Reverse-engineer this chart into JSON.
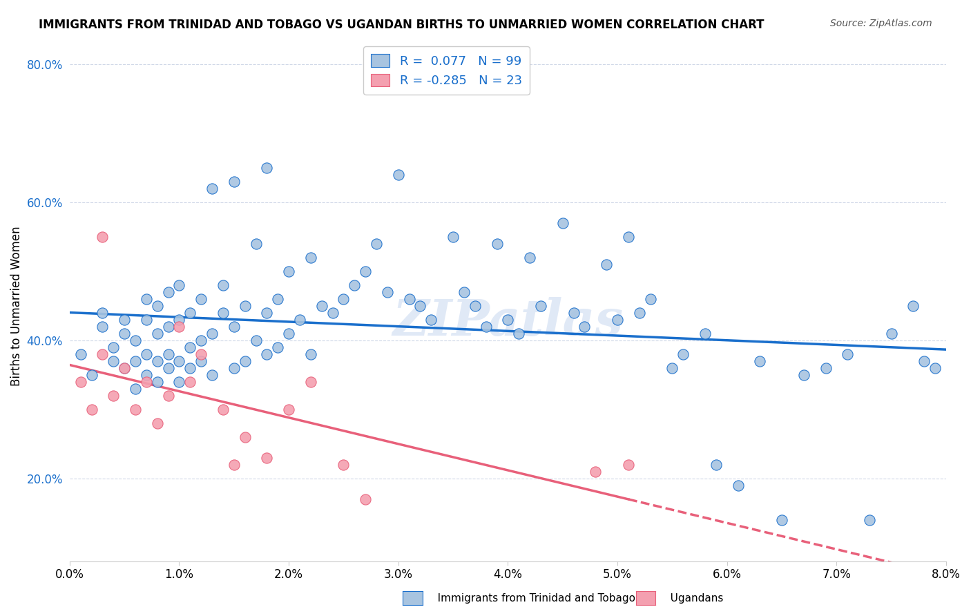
{
  "title": "IMMIGRANTS FROM TRINIDAD AND TOBAGO VS UGANDAN BIRTHS TO UNMARRIED WOMEN CORRELATION CHART",
  "source": "Source: ZipAtlas.com",
  "xlabel": "",
  "ylabel": "Births to Unmarried Women",
  "xlim": [
    0.0,
    0.08
  ],
  "ylim": [
    0.08,
    0.82
  ],
  "xticks": [
    0.0,
    0.01,
    0.02,
    0.03,
    0.04,
    0.05,
    0.06,
    0.07,
    0.08
  ],
  "xticklabels": [
    "0.0%",
    "1.0%",
    "2.0%",
    "3.0%",
    "4.0%",
    "5.0%",
    "6.0%",
    "7.0%",
    "8.0%"
  ],
  "yticks": [
    0.2,
    0.4,
    0.6,
    0.8
  ],
  "yticklabels": [
    "20.0%",
    "40.0%",
    "60.0%",
    "80.0%"
  ],
  "blue_r": "0.077",
  "blue_n": "99",
  "pink_r": "-0.285",
  "pink_n": "23",
  "blue_color": "#a8c4e0",
  "pink_color": "#f4a0b0",
  "blue_line_color": "#1a6fcc",
  "pink_line_color": "#e8607a",
  "watermark": "ZIPatlas",
  "blue_scatter_x": [
    0.001,
    0.002,
    0.003,
    0.003,
    0.004,
    0.004,
    0.005,
    0.005,
    0.005,
    0.006,
    0.006,
    0.006,
    0.007,
    0.007,
    0.007,
    0.007,
    0.008,
    0.008,
    0.008,
    0.008,
    0.009,
    0.009,
    0.009,
    0.009,
    0.01,
    0.01,
    0.01,
    0.01,
    0.011,
    0.011,
    0.011,
    0.012,
    0.012,
    0.012,
    0.013,
    0.013,
    0.013,
    0.014,
    0.014,
    0.015,
    0.015,
    0.015,
    0.016,
    0.016,
    0.017,
    0.017,
    0.018,
    0.018,
    0.018,
    0.019,
    0.019,
    0.02,
    0.02,
    0.021,
    0.022,
    0.022,
    0.023,
    0.024,
    0.025,
    0.026,
    0.027,
    0.028,
    0.029,
    0.03,
    0.031,
    0.032,
    0.033,
    0.035,
    0.036,
    0.037,
    0.038,
    0.039,
    0.04,
    0.041,
    0.042,
    0.043,
    0.045,
    0.046,
    0.047,
    0.049,
    0.05,
    0.051,
    0.052,
    0.053,
    0.055,
    0.056,
    0.058,
    0.059,
    0.061,
    0.063,
    0.065,
    0.067,
    0.069,
    0.071,
    0.073,
    0.075,
    0.077,
    0.078,
    0.079
  ],
  "blue_scatter_y": [
    0.38,
    0.35,
    0.42,
    0.44,
    0.37,
    0.39,
    0.36,
    0.41,
    0.43,
    0.33,
    0.37,
    0.4,
    0.35,
    0.38,
    0.43,
    0.46,
    0.34,
    0.37,
    0.41,
    0.45,
    0.36,
    0.38,
    0.42,
    0.47,
    0.34,
    0.37,
    0.43,
    0.48,
    0.36,
    0.39,
    0.44,
    0.37,
    0.4,
    0.46,
    0.35,
    0.41,
    0.62,
    0.44,
    0.48,
    0.36,
    0.42,
    0.63,
    0.37,
    0.45,
    0.4,
    0.54,
    0.38,
    0.44,
    0.65,
    0.39,
    0.46,
    0.41,
    0.5,
    0.43,
    0.38,
    0.52,
    0.45,
    0.44,
    0.46,
    0.48,
    0.5,
    0.54,
    0.47,
    0.64,
    0.46,
    0.45,
    0.43,
    0.55,
    0.47,
    0.45,
    0.42,
    0.54,
    0.43,
    0.41,
    0.52,
    0.45,
    0.57,
    0.44,
    0.42,
    0.51,
    0.43,
    0.55,
    0.44,
    0.46,
    0.36,
    0.38,
    0.41,
    0.22,
    0.19,
    0.37,
    0.14,
    0.35,
    0.36,
    0.38,
    0.14,
    0.41,
    0.45,
    0.37,
    0.36
  ],
  "pink_scatter_x": [
    0.001,
    0.002,
    0.003,
    0.003,
    0.004,
    0.005,
    0.006,
    0.007,
    0.008,
    0.009,
    0.01,
    0.011,
    0.012,
    0.014,
    0.015,
    0.016,
    0.018,
    0.02,
    0.022,
    0.025,
    0.027,
    0.048,
    0.051
  ],
  "pink_scatter_y": [
    0.34,
    0.3,
    0.38,
    0.55,
    0.32,
    0.36,
    0.3,
    0.34,
    0.28,
    0.32,
    0.42,
    0.34,
    0.38,
    0.3,
    0.22,
    0.26,
    0.23,
    0.3,
    0.34,
    0.22,
    0.17,
    0.21,
    0.22
  ]
}
